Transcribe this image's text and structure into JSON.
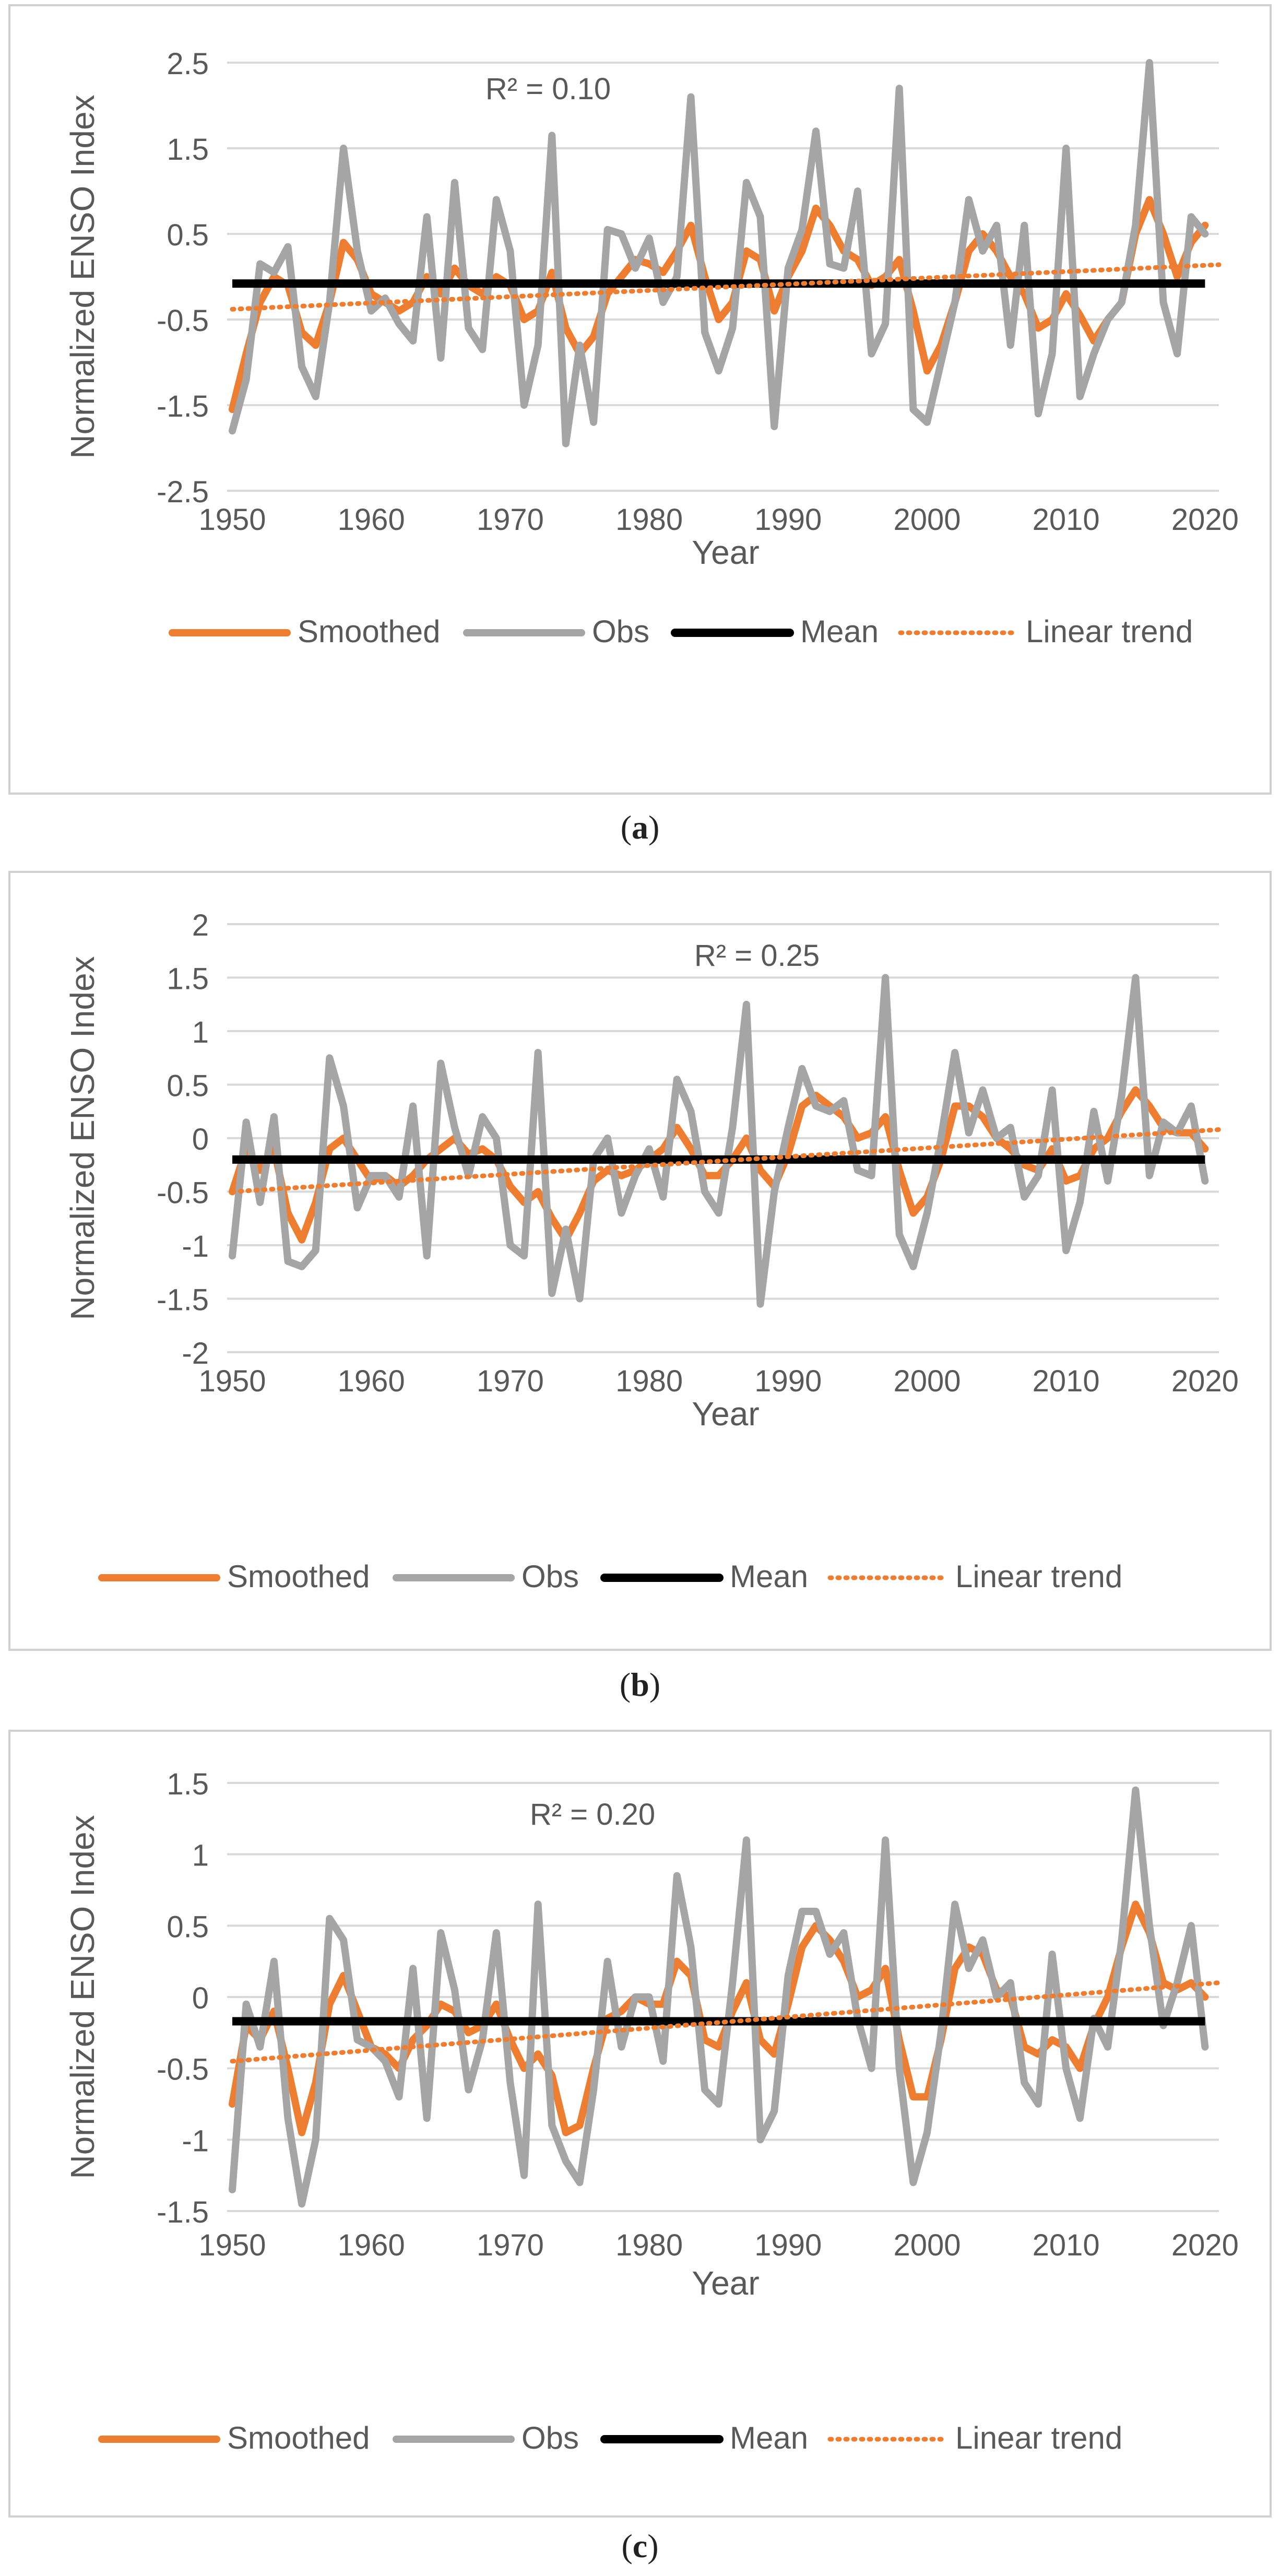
{
  "colors": {
    "smoothed": "#ED7D31",
    "obs": "#A5A5A5",
    "mean": "#000000",
    "trend": "#ED7D31",
    "grid": "#D9D9D9",
    "text": "#595959",
    "border": "#D0D0D0"
  },
  "chart_data": [
    {
      "type": "line",
      "panel_label": "a",
      "title": "",
      "xlabel": "Year",
      "ylabel": "Normalized ENSO Index",
      "annotation": "R² = 0.10",
      "xlim": [
        1950,
        2021
      ],
      "ylim": [
        -2.5,
        2.5
      ],
      "xticks": [
        1950,
        1960,
        1970,
        1980,
        1990,
        2000,
        2010,
        2020
      ],
      "yticks": [
        2.5,
        1.5,
        0.5,
        -0.5,
        -1.5,
        -2.5
      ],
      "ytick_labels": [
        "2.5",
        "1.5",
        "0.5",
        "-0.5",
        "-1.5",
        "-2.5"
      ],
      "legend": [
        "Smoothed",
        "Obs",
        "Mean",
        "Linear trend"
      ],
      "legend_position": "bottom",
      "x": [
        1950,
        1951,
        1952,
        1953,
        1954,
        1955,
        1956,
        1957,
        1958,
        1959,
        1960,
        1961,
        1962,
        1963,
        1964,
        1965,
        1966,
        1967,
        1968,
        1969,
        1970,
        1971,
        1972,
        1973,
        1974,
        1975,
        1976,
        1977,
        1978,
        1979,
        1980,
        1981,
        1982,
        1983,
        1984,
        1985,
        1986,
        1987,
        1988,
        1989,
        1990,
        1991,
        1992,
        1993,
        1994,
        1995,
        1996,
        1997,
        1998,
        1999,
        2000,
        2001,
        2002,
        2003,
        2004,
        2005,
        2006,
        2007,
        2008,
        2009,
        2010,
        2011,
        2012,
        2013,
        2014,
        2015,
        2016,
        2017,
        2018,
        2019,
        2020
      ],
      "series": [
        {
          "name": "Obs",
          "values": [
            -1.8,
            -1.2,
            0.15,
            0.05,
            0.35,
            -1.05,
            -1.4,
            -0.3,
            1.5,
            0.3,
            -0.4,
            -0.25,
            -0.55,
            -0.75,
            0.7,
            -0.95,
            1.1,
            -0.6,
            -0.85,
            0.9,
            0.3,
            -1.5,
            -0.8,
            1.65,
            -1.95,
            -0.8,
            -1.7,
            0.55,
            0.5,
            0.1,
            0.45,
            -0.3,
            0.0,
            2.1,
            -0.65,
            -1.1,
            -0.6,
            1.1,
            0.7,
            -1.75,
            0.1,
            0.55,
            1.7,
            0.15,
            0.1,
            1.0,
            -0.9,
            -0.55,
            2.2,
            -1.55,
            -1.7,
            -1.0,
            -0.3,
            0.9,
            0.3,
            0.6,
            -0.8,
            0.6,
            -1.6,
            -0.9,
            1.5,
            -1.4,
            -0.9,
            -0.5,
            -0.3,
            0.6,
            2.5,
            -0.3,
            -0.9,
            0.7,
            0.5
          ]
        },
        {
          "name": "Smoothed",
          "values": [
            -1.55,
            -0.9,
            -0.3,
            0.0,
            -0.1,
            -0.65,
            -0.8,
            -0.3,
            0.4,
            0.2,
            -0.2,
            -0.3,
            -0.4,
            -0.3,
            0.0,
            -0.2,
            0.1,
            -0.1,
            -0.2,
            0.0,
            -0.1,
            -0.5,
            -0.4,
            0.05,
            -0.6,
            -0.9,
            -0.7,
            -0.2,
            0.0,
            0.2,
            0.15,
            0.05,
            0.3,
            0.6,
            0.0,
            -0.5,
            -0.3,
            0.3,
            0.2,
            -0.4,
            0.0,
            0.3,
            0.8,
            0.6,
            0.3,
            0.2,
            -0.1,
            0.0,
            0.2,
            -0.4,
            -1.1,
            -0.8,
            -0.3,
            0.3,
            0.5,
            0.3,
            0.0,
            -0.2,
            -0.6,
            -0.5,
            -0.2,
            -0.45,
            -0.75,
            -0.5,
            -0.3,
            0.5,
            0.9,
            0.5,
            0.0,
            0.4,
            0.6
          ]
        }
      ],
      "mean": -0.08,
      "trend": [
        -0.38,
        0.14
      ]
    },
    {
      "type": "line",
      "panel_label": "b",
      "title": "",
      "xlabel": "Year",
      "ylabel": "Normalized ENSO Index",
      "annotation": "R² = 0.25",
      "xlim": [
        1950,
        2021
      ],
      "ylim": [
        -2,
        2
      ],
      "xticks": [
        1950,
        1960,
        1970,
        1980,
        1990,
        2000,
        2010,
        2020
      ],
      "yticks": [
        2,
        1.5,
        1,
        0.5,
        0,
        -0.5,
        -1,
        -1.5,
        -2
      ],
      "ytick_labels": [
        "2",
        "1.5",
        "1",
        "0.5",
        "0",
        "-0.5",
        "-1",
        "-1.5",
        "-2"
      ],
      "legend": [
        "Smoothed",
        "Obs",
        "Mean",
        "Linear trend"
      ],
      "legend_position": "bottom",
      "x": [
        1950,
        1951,
        1952,
        1953,
        1954,
        1955,
        1956,
        1957,
        1958,
        1959,
        1960,
        1961,
        1962,
        1963,
        1964,
        1965,
        1966,
        1967,
        1968,
        1969,
        1970,
        1971,
        1972,
        1973,
        1974,
        1975,
        1976,
        1977,
        1978,
        1979,
        1980,
        1981,
        1982,
        1983,
        1984,
        1985,
        1986,
        1987,
        1988,
        1989,
        1990,
        1991,
        1992,
        1993,
        1994,
        1995,
        1996,
        1997,
        1998,
        1999,
        2000,
        2001,
        2002,
        2003,
        2004,
        2005,
        2006,
        2007,
        2008,
        2009,
        2010,
        2011,
        2012,
        2013,
        2014,
        2015,
        2016,
        2017,
        2018,
        2019,
        2020
      ],
      "series": [
        {
          "name": "Obs",
          "values": [
            -1.1,
            0.15,
            -0.6,
            0.2,
            -1.15,
            -1.2,
            -1.05,
            0.75,
            0.3,
            -0.65,
            -0.35,
            -0.35,
            -0.55,
            0.3,
            -1.1,
            0.7,
            0.1,
            -0.35,
            0.2,
            0.0,
            -1.0,
            -1.1,
            0.8,
            -1.45,
            -0.85,
            -1.5,
            -0.2,
            0.0,
            -0.7,
            -0.35,
            -0.1,
            -0.55,
            0.55,
            0.25,
            -0.5,
            -0.7,
            0.1,
            1.25,
            -1.55,
            -0.5,
            0.1,
            0.65,
            0.3,
            0.25,
            0.35,
            -0.3,
            -0.35,
            1.5,
            -0.9,
            -1.2,
            -0.7,
            0.0,
            0.8,
            0.05,
            0.45,
            0.0,
            0.1,
            -0.55,
            -0.35,
            0.45,
            -1.05,
            -0.6,
            0.25,
            -0.4,
            0.4,
            1.5,
            -0.35,
            0.15,
            0.05,
            0.3,
            -0.4
          ]
        },
        {
          "name": "Smoothed",
          "values": [
            -0.5,
            -0.1,
            -0.3,
            -0.1,
            -0.7,
            -0.95,
            -0.6,
            -0.1,
            0.0,
            -0.2,
            -0.4,
            -0.35,
            -0.45,
            -0.35,
            -0.2,
            -0.1,
            0.0,
            -0.15,
            -0.1,
            -0.2,
            -0.45,
            -0.6,
            -0.5,
            -0.75,
            -0.95,
            -0.7,
            -0.4,
            -0.3,
            -0.35,
            -0.3,
            -0.2,
            -0.1,
            0.1,
            -0.1,
            -0.35,
            -0.35,
            -0.2,
            0.0,
            -0.3,
            -0.45,
            -0.15,
            0.3,
            0.4,
            0.3,
            0.2,
            0.0,
            0.05,
            0.2,
            -0.3,
            -0.7,
            -0.55,
            -0.2,
            0.3,
            0.3,
            0.2,
            0.0,
            -0.1,
            -0.25,
            -0.3,
            -0.1,
            -0.4,
            -0.35,
            -0.1,
            0.0,
            0.25,
            0.45,
            0.3,
            0.1,
            0.05,
            0.05,
            -0.1
          ]
        }
      ],
      "mean": -0.2,
      "trend": [
        -0.5,
        0.08
      ]
    },
    {
      "type": "line",
      "panel_label": "c",
      "title": "",
      "xlabel": "Year",
      "ylabel": "Normalized ENSO Index",
      "annotation": "R² = 0.20",
      "xlim": [
        1950,
        2021
      ],
      "ylim": [
        -1.5,
        1.5
      ],
      "xticks": [
        1950,
        1960,
        1970,
        1980,
        1990,
        2000,
        2010,
        2020
      ],
      "yticks": [
        1.5,
        1,
        0.5,
        0,
        -0.5,
        -1,
        -1.5
      ],
      "ytick_labels": [
        "1.5",
        "1",
        "0.5",
        "0",
        "-0.5",
        "-1",
        "-1.5"
      ],
      "legend": [
        "Smoothed",
        "Obs",
        "Mean",
        "Linear trend"
      ],
      "legend_position": "bottom",
      "x": [
        1950,
        1951,
        1952,
        1953,
        1954,
        1955,
        1956,
        1957,
        1958,
        1959,
        1960,
        1961,
        1962,
        1963,
        1964,
        1965,
        1966,
        1967,
        1968,
        1969,
        1970,
        1971,
        1972,
        1973,
        1974,
        1975,
        1976,
        1977,
        1978,
        1979,
        1980,
        1981,
        1982,
        1983,
        1984,
        1985,
        1986,
        1987,
        1988,
        1989,
        1990,
        1991,
        1992,
        1993,
        1994,
        1995,
        1996,
        1997,
        1998,
        1999,
        2000,
        2001,
        2002,
        2003,
        2004,
        2005,
        2006,
        2007,
        2008,
        2009,
        2010,
        2011,
        2012,
        2013,
        2014,
        2015,
        2016,
        2017,
        2018,
        2019,
        2020
      ],
      "series": [
        {
          "name": "Obs",
          "values": [
            -1.35,
            -0.05,
            -0.35,
            0.25,
            -0.85,
            -1.45,
            -1.0,
            0.55,
            0.4,
            -0.3,
            -0.35,
            -0.45,
            -0.7,
            0.2,
            -0.85,
            0.45,
            0.05,
            -0.65,
            -0.3,
            0.45,
            -0.6,
            -1.25,
            0.65,
            -0.9,
            -1.15,
            -1.3,
            -0.65,
            0.25,
            -0.35,
            0.0,
            0.0,
            -0.45,
            0.85,
            0.35,
            -0.65,
            -0.75,
            0.1,
            1.1,
            -1.0,
            -0.8,
            0.15,
            0.6,
            0.6,
            0.3,
            0.45,
            -0.15,
            -0.5,
            1.1,
            -0.5,
            -1.3,
            -0.95,
            -0.25,
            0.65,
            0.2,
            0.4,
            0.0,
            0.1,
            -0.6,
            -0.75,
            0.3,
            -0.5,
            -0.85,
            -0.15,
            -0.35,
            0.4,
            1.45,
            0.5,
            -0.2,
            0.1,
            0.5,
            -0.35
          ]
        },
        {
          "name": "Smoothed",
          "values": [
            -0.75,
            -0.2,
            -0.3,
            -0.1,
            -0.5,
            -0.95,
            -0.6,
            -0.05,
            0.15,
            -0.1,
            -0.35,
            -0.4,
            -0.5,
            -0.3,
            -0.2,
            -0.05,
            -0.1,
            -0.25,
            -0.2,
            -0.05,
            -0.3,
            -0.5,
            -0.4,
            -0.55,
            -0.95,
            -0.9,
            -0.5,
            -0.15,
            -0.1,
            0.0,
            -0.05,
            -0.05,
            0.25,
            0.15,
            -0.3,
            -0.35,
            -0.1,
            0.1,
            -0.3,
            -0.4,
            -0.05,
            0.35,
            0.5,
            0.4,
            0.25,
            0.0,
            0.05,
            0.2,
            -0.3,
            -0.7,
            -0.7,
            -0.3,
            0.2,
            0.35,
            0.3,
            0.05,
            0.0,
            -0.35,
            -0.4,
            -0.3,
            -0.35,
            -0.5,
            -0.2,
            0.0,
            0.35,
            0.65,
            0.45,
            0.1,
            0.05,
            0.1,
            0.0
          ]
        }
      ],
      "mean": -0.17,
      "trend": [
        -0.45,
        0.1
      ]
    }
  ]
}
